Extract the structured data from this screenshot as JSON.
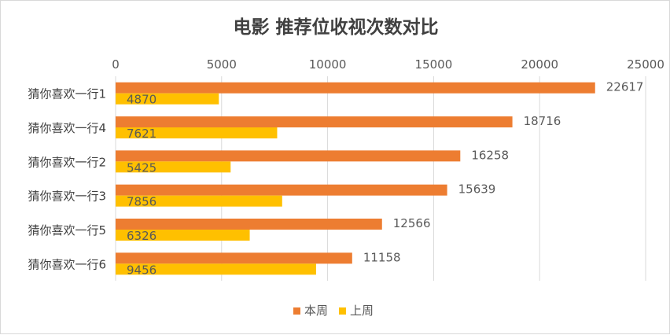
{
  "chart_data": {
    "type": "bar",
    "orientation": "horizontal",
    "title": "电影 推荐位收视次数对比",
    "categories": [
      "猜你喜欢一行1",
      "猜你喜欢一行4",
      "猜你喜欢一行2",
      "猜你喜欢一行3",
      "猜你喜欢一行5",
      "猜你喜欢一行6"
    ],
    "series": [
      {
        "name": "本周",
        "color": "#ED7D31",
        "values": [
          22617,
          18716,
          16258,
          15639,
          12566,
          11158
        ]
      },
      {
        "name": "上周",
        "color": "#FFC000",
        "values": [
          4870,
          7621,
          5425,
          7856,
          6326,
          9456
        ]
      }
    ],
    "xlim": [
      0,
      25000
    ],
    "xticks": [
      "0",
      "5000",
      "10000",
      "15000",
      "20000",
      "25000"
    ],
    "x_axis_position": "top",
    "grid": true,
    "legend": "bottom",
    "data_labels": true
  }
}
